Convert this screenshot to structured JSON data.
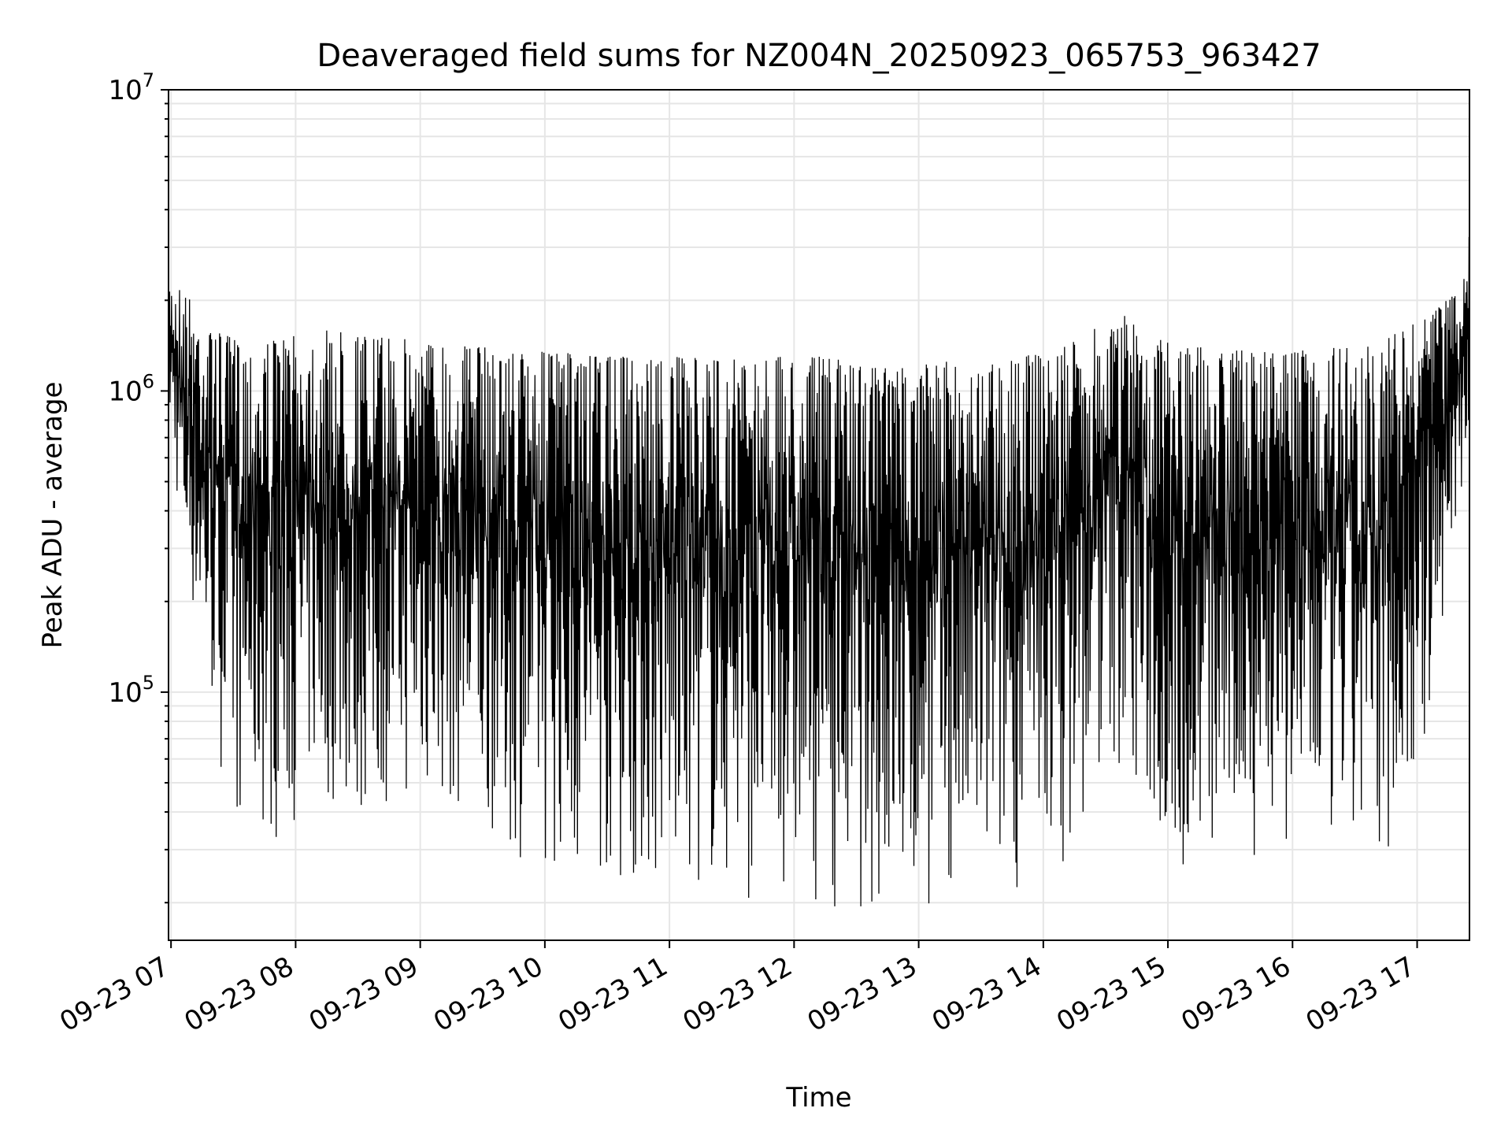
{
  "chart_data": {
    "type": "line",
    "title": "Deaveraged field sums for NZ004N_20250923_065753_963427",
    "xlabel": "Time",
    "ylabel": "Peak ADU - average",
    "yscale": "log",
    "ylim": [
      15000,
      10000000
    ],
    "xlim_hours": [
      6.98,
      17.42
    ],
    "grid": true,
    "line_color": "#000000",
    "grid_color": "#e6e6e6",
    "x_ticks": [
      {
        "hour": 7,
        "label": "09-23 07"
      },
      {
        "hour": 8,
        "label": "09-23 08"
      },
      {
        "hour": 9,
        "label": "09-23 09"
      },
      {
        "hour": 10,
        "label": "09-23 10"
      },
      {
        "hour": 11,
        "label": "09-23 11"
      },
      {
        "hour": 12,
        "label": "09-23 12"
      },
      {
        "hour": 13,
        "label": "09-23 13"
      },
      {
        "hour": 14,
        "label": "09-23 14"
      },
      {
        "hour": 15,
        "label": "09-23 15"
      },
      {
        "hour": 16,
        "label": "09-23 16"
      },
      {
        "hour": 17,
        "label": "09-23 17"
      }
    ],
    "y_ticks": [
      {
        "value": 100000,
        "base": "10",
        "exp": "5"
      },
      {
        "value": 1000000,
        "base": "10",
        "exp": "6"
      },
      {
        "value": 10000000,
        "base": "10",
        "exp": "7"
      }
    ],
    "series": [
      {
        "name": "deaveraged field sums",
        "note": "dense oscillating series; upper envelope (peaks) and lower envelope (troughs) read from plot",
        "x_hours": [
          6.98,
          7.1,
          7.3,
          7.5,
          7.7,
          7.9,
          8.1,
          8.3,
          8.5,
          8.7,
          8.9,
          9.2,
          9.5,
          9.8,
          10.1,
          10.4,
          10.7,
          11.0,
          11.3,
          11.6,
          11.9,
          12.2,
          12.5,
          12.7,
          12.9,
          13.2,
          13.5,
          13.8,
          14.1,
          14.3,
          14.5,
          14.7,
          14.9,
          15.1,
          15.4,
          15.7,
          16.0,
          16.3,
          16.6,
          16.9,
          17.1,
          17.3,
          17.42
        ],
        "peaks": [
          2300000,
          2200000,
          1600000,
          1500000,
          1450000,
          1500000,
          1550000,
          1600000,
          1550000,
          1500000,
          1500000,
          1450000,
          1400000,
          1350000,
          1350000,
          1300000,
          1300000,
          1300000,
          1280000,
          1280000,
          1300000,
          1300000,
          1250000,
          1200000,
          1200000,
          1250000,
          1250000,
          1300000,
          1350000,
          1500000,
          1700000,
          1800000,
          1500000,
          1400000,
          1400000,
          1350000,
          1350000,
          1400000,
          1400000,
          1600000,
          1800000,
          2100000,
          3500000
        ],
        "troughs": [
          800000,
          250000,
          90000,
          35000,
          33000,
          30000,
          45000,
          40000,
          35000,
          40000,
          42000,
          40000,
          35000,
          28000,
          25000,
          23000,
          22000,
          20000,
          22000,
          20000,
          21000,
          20000,
          18000,
          18000,
          17000,
          19000,
          20000,
          22000,
          25000,
          30000,
          60000,
          45000,
          30000,
          22000,
          26000,
          28000,
          28000,
          27000,
          24000,
          35000,
          70000,
          300000,
          600000
        ]
      }
    ]
  }
}
